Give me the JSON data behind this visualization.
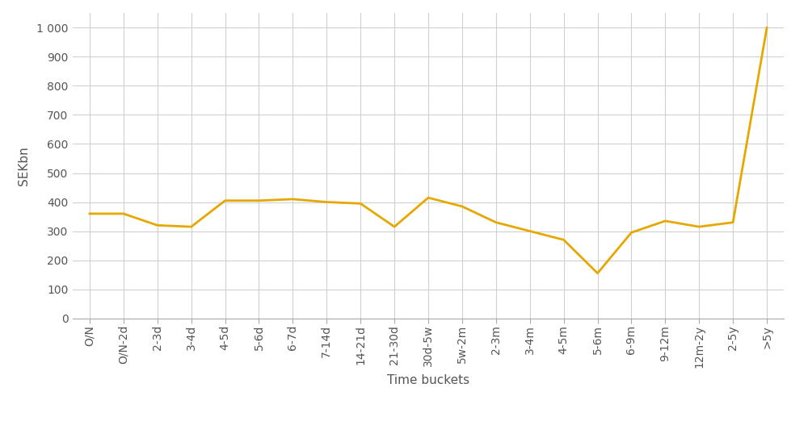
{
  "categories": [
    "O/N",
    "O/N-2d",
    "2-3d",
    "3-4d",
    "4-5d",
    "5-6d",
    "6-7d",
    "7-14d",
    "14-21d",
    "21-30d",
    "30d-5w",
    "5w-2m",
    "2-3m",
    "3-4m",
    "4-5m",
    "5-6m",
    "6-9m",
    "9-12m",
    "12m-2y",
    "2-5y",
    ">5y"
  ],
  "values": [
    360,
    360,
    320,
    315,
    405,
    405,
    410,
    400,
    395,
    315,
    415,
    385,
    330,
    300,
    270,
    155,
    295,
    335,
    315,
    330,
    1000
  ],
  "line_color": "#E6A800",
  "line_width": 2.0,
  "ylabel": "SEKbn",
  "xlabel": "Time buckets",
  "ylim": [
    0,
    1050
  ],
  "ytick_values": [
    0,
    100,
    200,
    300,
    400,
    500,
    600,
    700,
    800,
    900,
    1000
  ],
  "ytick_labels": [
    "0",
    "100",
    "200",
    "300",
    "400",
    "500",
    "600",
    "700",
    "800",
    "900",
    "1 000"
  ],
  "background_color": "#ffffff",
  "grid_color": "#d0d0d0",
  "tick_fontsize": 10,
  "label_fontsize": 11
}
